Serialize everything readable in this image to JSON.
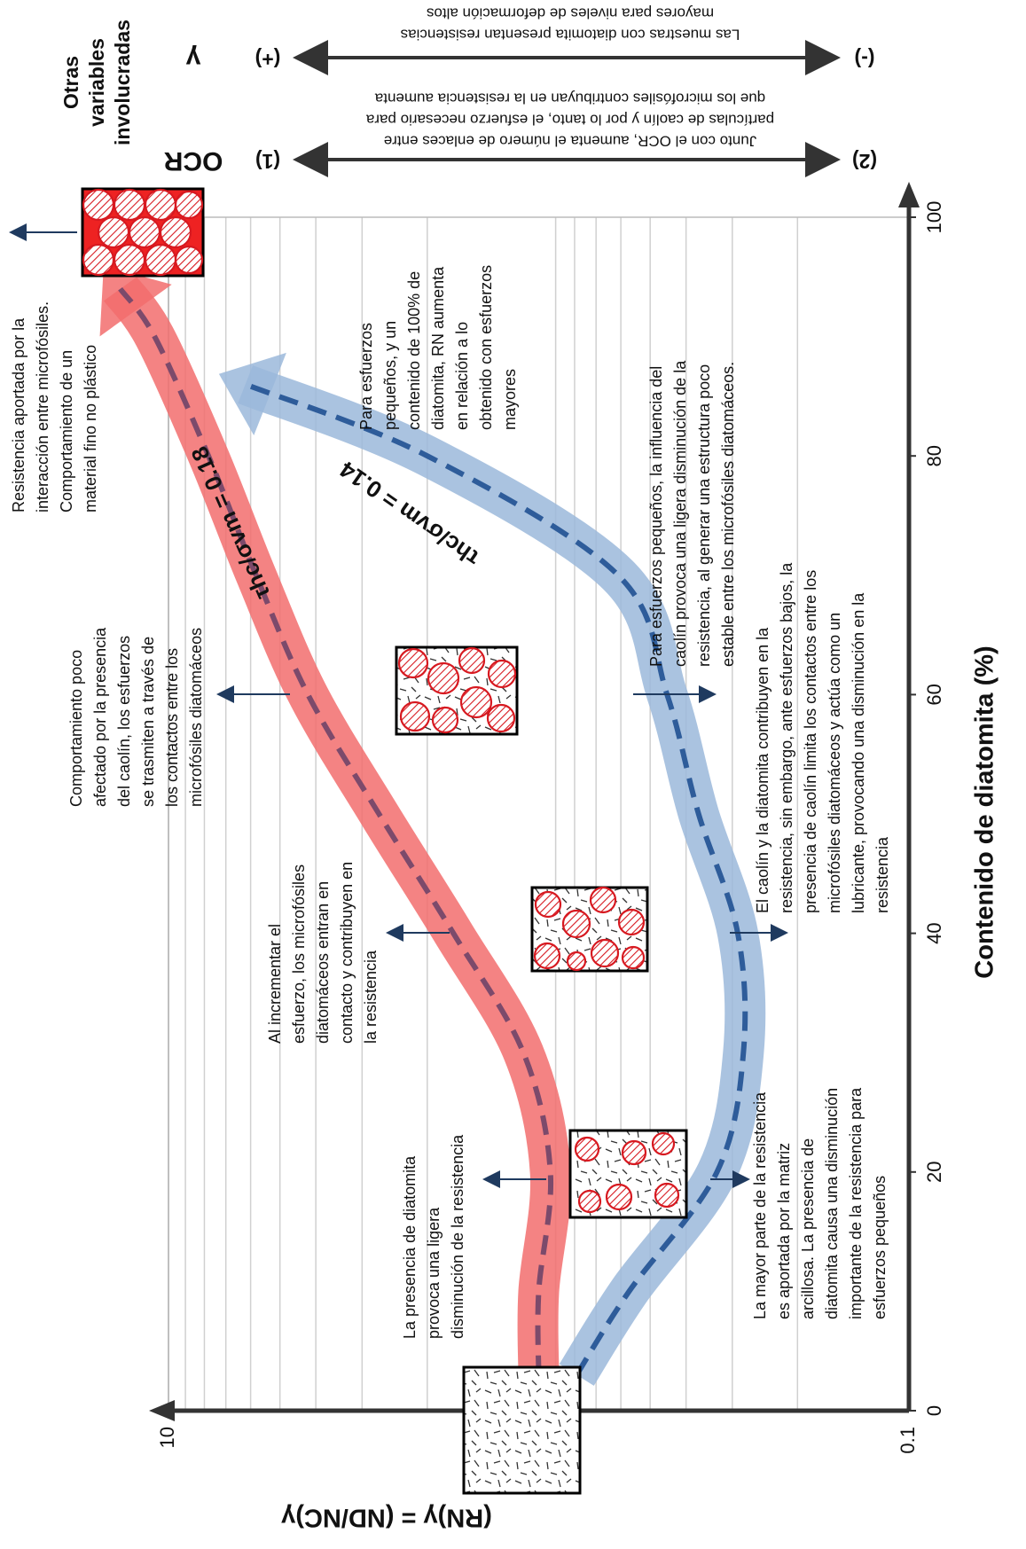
{
  "chart_data": {
    "type": "line",
    "xlabel": "Contenido de diatomita (%)",
    "ylabel": "(RN)γ = (ND/NC)γ",
    "xlim": [
      0,
      100
    ],
    "xticks": [
      0,
      20,
      40,
      60,
      80,
      100
    ],
    "ylim": [
      0.1,
      10
    ],
    "yticks": [
      0.1,
      10
    ],
    "ylog": true,
    "grid": true,
    "series": [
      {
        "name": "τhc/σvm = 0.18",
        "color": "#f26d6d",
        "line_color": "#7c4a6b",
        "x": [
          3,
          10,
          20,
          30,
          40,
          50,
          60,
          70,
          80,
          90,
          94
        ],
        "values": [
          1.0,
          1.0,
          0.93,
          1.1,
          1.7,
          2.7,
          4.2,
          5.8,
          7.8,
          10.9,
          13.5
        ]
      },
      {
        "name": "τhc/σvm = 0.14",
        "color": "#9bb8db",
        "line_color": "#2e5c9a",
        "x": [
          3,
          10,
          20,
          30,
          40,
          50,
          60,
          70,
          80,
          86
        ],
        "values": [
          0.79,
          0.57,
          0.33,
          0.28,
          0.29,
          0.37,
          0.45,
          0.61,
          2.0,
          6.2
        ]
      }
    ]
  },
  "annotations": [
    {
      "lines": [
        "Resistencia aportada por la",
        "interacción entre microfósiles.",
        "Comportamiento de un",
        "material fino no plástico"
      ]
    },
    {
      "lines": [
        "Comportamiento poco",
        "afectado por la presencia",
        "del caolín, los esfuerzos",
        "se trasmiten a través de",
        "los contactos entre los",
        "microfósiles diatomáceos"
      ]
    },
    {
      "lines": [
        "Al incrementar el",
        "esfuerzo, los microfósiles",
        "diatomáceos entran en",
        "contacto y contribuyen en",
        "la resistencia"
      ]
    },
    {
      "lines": [
        "La presencia de diatomita",
        "provoca una ligera",
        "disminución de la resistencia"
      ]
    },
    {
      "lines": [
        "La mayor parte de la resistencia",
        "es  aportada por la matriz",
        "arcillosa. La presencia de",
        "diatomita causa una disminución",
        "importante de la resistencia para",
        "esfuerzos pequeños"
      ]
    },
    {
      "lines": [
        "El caolín y la diatomita contribuyen en la",
        "resistencia, sin embargo, ante esfuerzos bajos, la",
        "presencia de caolín limita los contactos entre los",
        "microfósiles  diatomáceos y actúa como un",
        "lubricante, provocando una disminución en la",
        "resistencia"
      ]
    },
    {
      "lines": [
        "Para esfuerzos pequeños, la influencia del",
        "caolín provoca una ligera disminución de la",
        "resistencia, al generar una estructura poco",
        "estable  entre los microfósiles diatomáceos."
      ]
    },
    {
      "lines": [
        "Para esfuerzos",
        "pequeños, y un",
        "contenido de 100% de",
        "diatomita, RN aumenta",
        "en relación a lo",
        "obtenido con esfuerzos",
        "mayores"
      ]
    }
  ],
  "side_panel": {
    "title": [
      "Otras",
      "variables",
      "involucradas"
    ],
    "variables": [
      {
        "name": "OCR",
        "left": "(1)",
        "right": "(2)",
        "note": [
          "Junto con el OCR, aumenta el número de enlaces entre",
          "partículas de caolín y por lo tanto, el esfuerzo necesario para",
          "que los microfósiles contribuyan en la resistencia aumenta"
        ]
      },
      {
        "name": "γ",
        "left": "(+)",
        "right": "(-)",
        "note": [
          "Las muestras con diatomita presentan resistencias",
          "mayores  para niveles de deformación altos"
        ]
      }
    ]
  }
}
